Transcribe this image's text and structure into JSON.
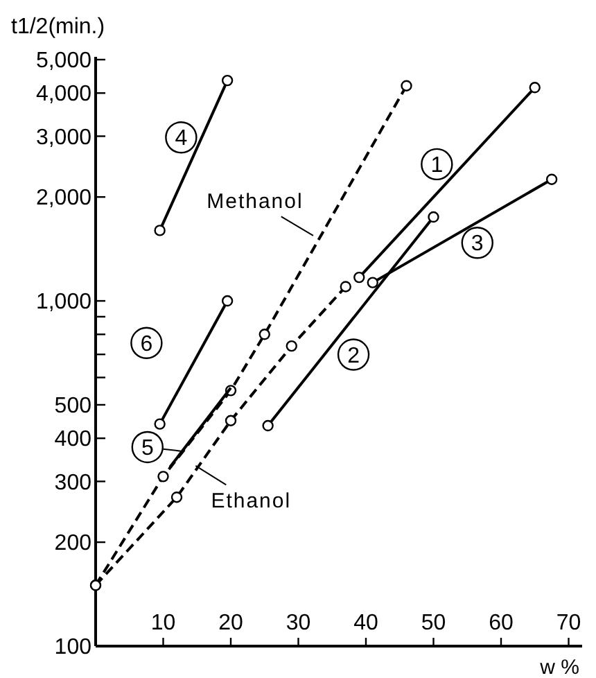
{
  "chart_data": {
    "type": "line",
    "xlabel": "w %",
    "ylabel": "t1/2(min.)",
    "xlim": [
      0,
      72
    ],
    "xticks": [
      10,
      20,
      30,
      40,
      50,
      60,
      70
    ],
    "ylim": [
      100,
      5000
    ],
    "log": "y",
    "yticks": [
      100,
      200,
      300,
      400,
      500,
      {
        "value": 600,
        "label": null
      },
      {
        "value": 700,
        "label": null
      },
      {
        "value": 800,
        "label": null
      },
      {
        "value": 900,
        "label": null
      },
      {
        "value": 1000,
        "label": "1,000"
      },
      {
        "value": 2000,
        "label": "2,000"
      },
      {
        "value": 3000,
        "label": "3,000"
      },
      {
        "value": 4000,
        "label": "4,000"
      },
      {
        "value": 5000,
        "label": "5,000"
      }
    ],
    "marker": "circle",
    "series": [
      {
        "name": "Methanol",
        "color": "#000000",
        "line_style": "dashed",
        "x": [
          0,
          10,
          20,
          25,
          46
        ],
        "values": [
          150,
          310,
          550,
          800,
          4200
        ]
      },
      {
        "name": "Ethanol",
        "color": "#000000",
        "line_style": "dashed",
        "x": [
          0,
          12,
          20,
          29,
          37
        ],
        "values": [
          150,
          270,
          450,
          740,
          1100
        ]
      },
      {
        "name": "1",
        "color": "#000000",
        "line_style": "solid",
        "x": [
          39,
          65
        ],
        "values": [
          1170,
          4150
        ]
      },
      {
        "name": "2",
        "color": "#000000",
        "line_style": "solid",
        "x": [
          25.5,
          50
        ],
        "values": [
          435,
          1750
        ]
      },
      {
        "name": "3",
        "color": "#000000",
        "line_style": "solid",
        "x": [
          41,
          67.5
        ],
        "values": [
          1130,
          2250
        ]
      },
      {
        "name": "4",
        "color": "#000000",
        "line_style": "solid",
        "x": [
          9.5,
          19.5
        ],
        "values": [
          1600,
          4350
        ]
      },
      {
        "name": "5",
        "color": "#000000",
        "line_style": "solid",
        "marker": "none",
        "x": [
          11,
          20
        ],
        "values": [
          330,
          560
        ]
      },
      {
        "name": "6",
        "color": "#000000",
        "line_style": "solid",
        "x": [
          9.5,
          19.5
        ],
        "values": [
          440,
          1000
        ]
      }
    ]
  }
}
